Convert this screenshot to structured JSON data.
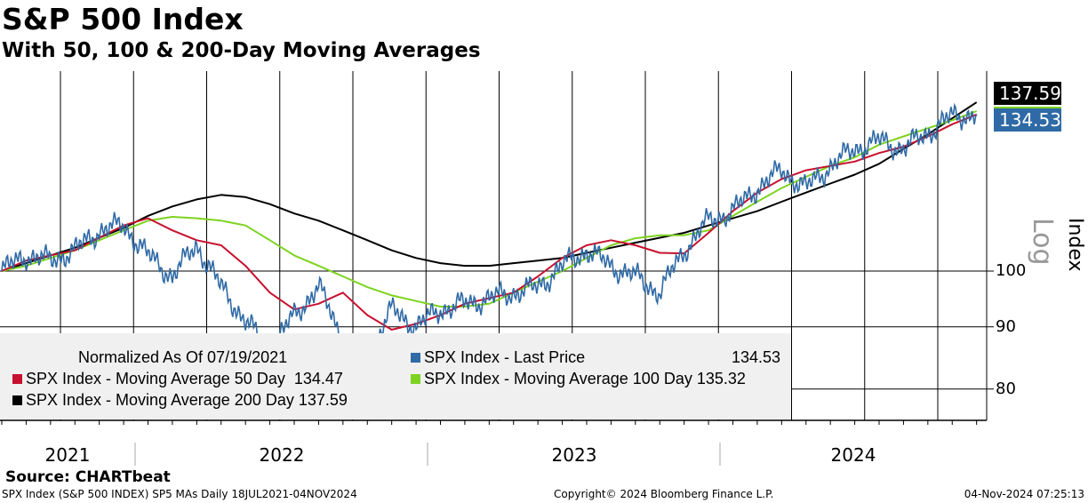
{
  "header": {
    "title": "S&P 500 Index",
    "subtitle": "With 50, 100 & 200-Day Moving Averages"
  },
  "legend": {
    "normalized": "Normalized As Of 07/19/2021",
    "items": [
      {
        "label": "SPX Index - Last Price",
        "value": "134.53",
        "color": "#2f6aa6"
      },
      {
        "label": "SPX Index - Moving Average 50 Day",
        "value": "134.47",
        "color": "#c8102e"
      },
      {
        "label": "SPX Index - Moving Average 100 Day",
        "value": "135.32",
        "color": "#7ed321"
      },
      {
        "label": "SPX Index - Moving Average 200 Day",
        "value": "137.59",
        "color": "#000000"
      }
    ]
  },
  "axis": {
    "scale_label": "Log",
    "axis_label": "Index"
  },
  "tags": {
    "black": "137.59",
    "blue": "134.53"
  },
  "source": "Source: CHARTbeat",
  "footer": {
    "left": "SPX Index (S&P 500 INDEX) SP5 MAs  Daily 18JUL2021-04NOV2024",
    "center": "Copyright© 2024 Bloomberg Finance L.P.",
    "right": "04-Nov-2024 07:25:13"
  },
  "chart_data": {
    "type": "line",
    "title": "S&P 500 Index",
    "subtitle": "With 50, 100 & 200-Day Moving Averages",
    "ylabel": "Index",
    "yscale": "log",
    "ylim": [
      75.4,
      146
    ],
    "yticks": [
      {
        "v": 100,
        "label": "100"
      },
      {
        "v": 90,
        "label": "90"
      },
      {
        "v": 80,
        "label": "80"
      }
    ],
    "xlim": [
      2021.545,
      2024.84
    ],
    "xticks": [
      {
        "v": 2021.77,
        "label": "2021"
      },
      {
        "v": 2022.5,
        "label": "2022"
      },
      {
        "v": 2023.5,
        "label": "2023"
      },
      {
        "v": 2024.45,
        "label": "2024"
      }
    ],
    "x_start": 2021.545,
    "x_step_months": 1,
    "series": [
      {
        "name": "Last Price",
        "color": "#2f6aa6",
        "values": [
          100,
          103,
          102,
          104,
          108,
          109,
          103,
          99,
          105,
          97,
          91,
          86,
          92,
          97,
          88,
          85,
          93,
          90,
          93,
          94,
          95,
          96,
          97,
          101,
          104,
          101,
          99,
          96,
          104,
          110,
          112,
          117,
          121,
          117,
          122,
          126,
          128,
          126,
          130,
          134,
          134.53
        ]
      },
      {
        "name": "MA 200 Day",
        "color": "#000000",
        "values": [
          100,
          101.5,
          103,
          104.5,
          106.5,
          108.5,
          111,
          113,
          114.5,
          115.5,
          115,
          113.5,
          111.5,
          110,
          108,
          106,
          104,
          102.5,
          101.5,
          101,
          101,
          101.5,
          102,
          102.5,
          103.5,
          104.5,
          105.5,
          106.5,
          107.5,
          109,
          110.5,
          112,
          114,
          116,
          118,
          120,
          122.5,
          126,
          129.5,
          133.5,
          137.59
        ]
      },
      {
        "name": "MA 100 Day",
        "color": "#7ed321",
        "values": [
          100,
          101,
          102.5,
          104,
          106,
          108,
          110,
          110.8,
          110.5,
          110,
          109,
          106,
          103,
          101,
          99,
          97,
          95.5,
          94.5,
          93.5,
          93.5,
          94,
          96,
          98,
          100,
          102.5,
          105,
          106.4,
          107,
          107,
          108,
          111,
          114,
          117,
          119.5,
          122,
          124,
          127,
          129,
          131,
          133,
          135.32
        ]
      },
      {
        "name": "MA 50 Day",
        "color": "#c8102e",
        "values": [
          100,
          102,
          103,
          104,
          106.5,
          109,
          110.5,
          108,
          106,
          105,
          101,
          96,
          93,
          94,
          96,
          92,
          89.5,
          90.5,
          92,
          94,
          95,
          96,
          99,
          102.5,
          105,
          106,
          105,
          103.5,
          103.4,
          107.5,
          112,
          116,
          119,
          121,
          122,
          123,
          125,
          126.5,
          129,
          132,
          134.47
        ]
      }
    ]
  }
}
